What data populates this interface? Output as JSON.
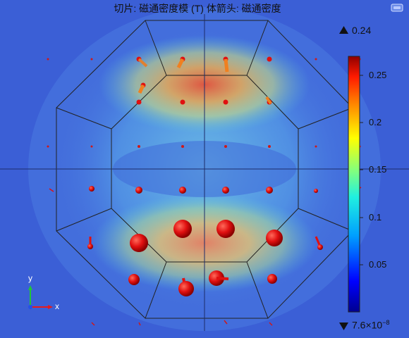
{
  "title": "切片: 磁通密度模 (T)  体箭头: 磁通密度",
  "colorbar": {
    "max_indicator": "0.24",
    "min_indicator_base": "7.6×10",
    "min_indicator_exp": "−8",
    "ticks": [
      {
        "label": "0.25",
        "value": 0.25
      },
      {
        "label": "0.2",
        "value": 0.2
      },
      {
        "label": "0.15",
        "value": 0.15
      },
      {
        "label": "0.1",
        "value": 0.1
      },
      {
        "label": "0.05",
        "value": 0.05
      }
    ],
    "range": [
      0,
      0.27
    ]
  },
  "axes": {
    "x_label": "x",
    "y_label": "y"
  },
  "colors": {
    "background": "#3b5fd6",
    "arrow": "#e01010",
    "axis_x": "#e81a1a",
    "axis_y": "#22c43a",
    "axis_z": "#2450e8"
  },
  "icons": {
    "max_marker": "up-triangle-icon",
    "min_marker": "down-triangle-icon",
    "corner": "logo-icon"
  }
}
